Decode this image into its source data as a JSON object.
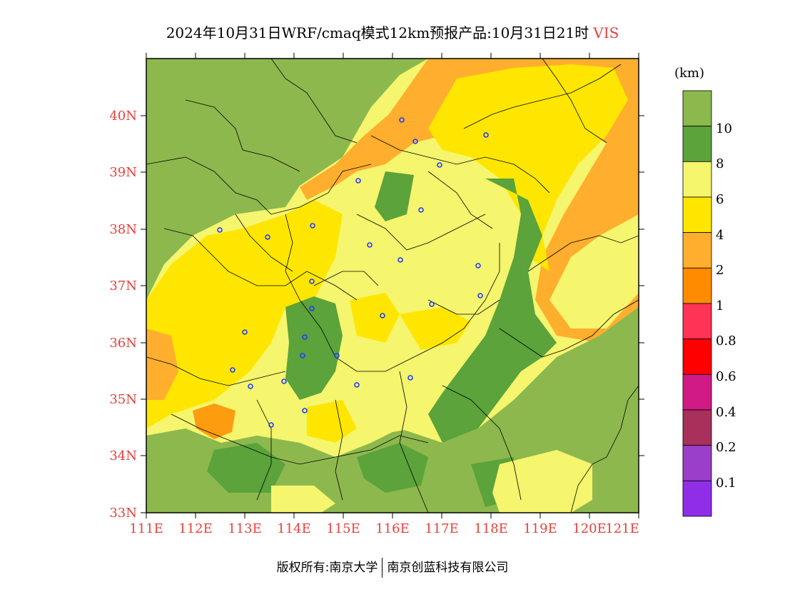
{
  "title": {
    "text": "2024年10月31日WRF/cmaq模式12km预报产品:10月31日21时",
    "variable": "VIS"
  },
  "colorbar": {
    "unit": "(km)",
    "bins": [
      {
        "color": "#8db84e",
        "label": "10"
      },
      {
        "color": "#5ba33a",
        "label": "8"
      },
      {
        "color": "#f5f56e",
        "label": "6"
      },
      {
        "color": "#ffe600",
        "label": "4"
      },
      {
        "color": "#ffae2e",
        "label": "2"
      },
      {
        "color": "#ff8c00",
        "label": "1"
      },
      {
        "color": "#ff3355",
        "label": "0.8"
      },
      {
        "color": "#ff0000",
        "label": "0.6"
      },
      {
        "color": "#d11a86",
        "label": "0.4"
      },
      {
        "color": "#a8305a",
        "label": "0.2"
      },
      {
        "color": "#9a3fc9",
        "label": "0.1"
      },
      {
        "color": "#8f2ee6",
        "label": ""
      }
    ]
  },
  "axes": {
    "lat_labels": [
      "40N",
      "39N",
      "38N",
      "37N",
      "36N",
      "35N",
      "34N",
      "33N"
    ],
    "lon_labels": [
      "111E",
      "112E",
      "113E",
      "114E",
      "115E",
      "116E",
      "117E",
      "118E",
      "119E",
      "120E",
      "121E"
    ],
    "label_color": "#e8403c"
  },
  "copyright": {
    "left": "版权所有:南京大学",
    "right": "南京创蓝科技有限公司"
  }
}
